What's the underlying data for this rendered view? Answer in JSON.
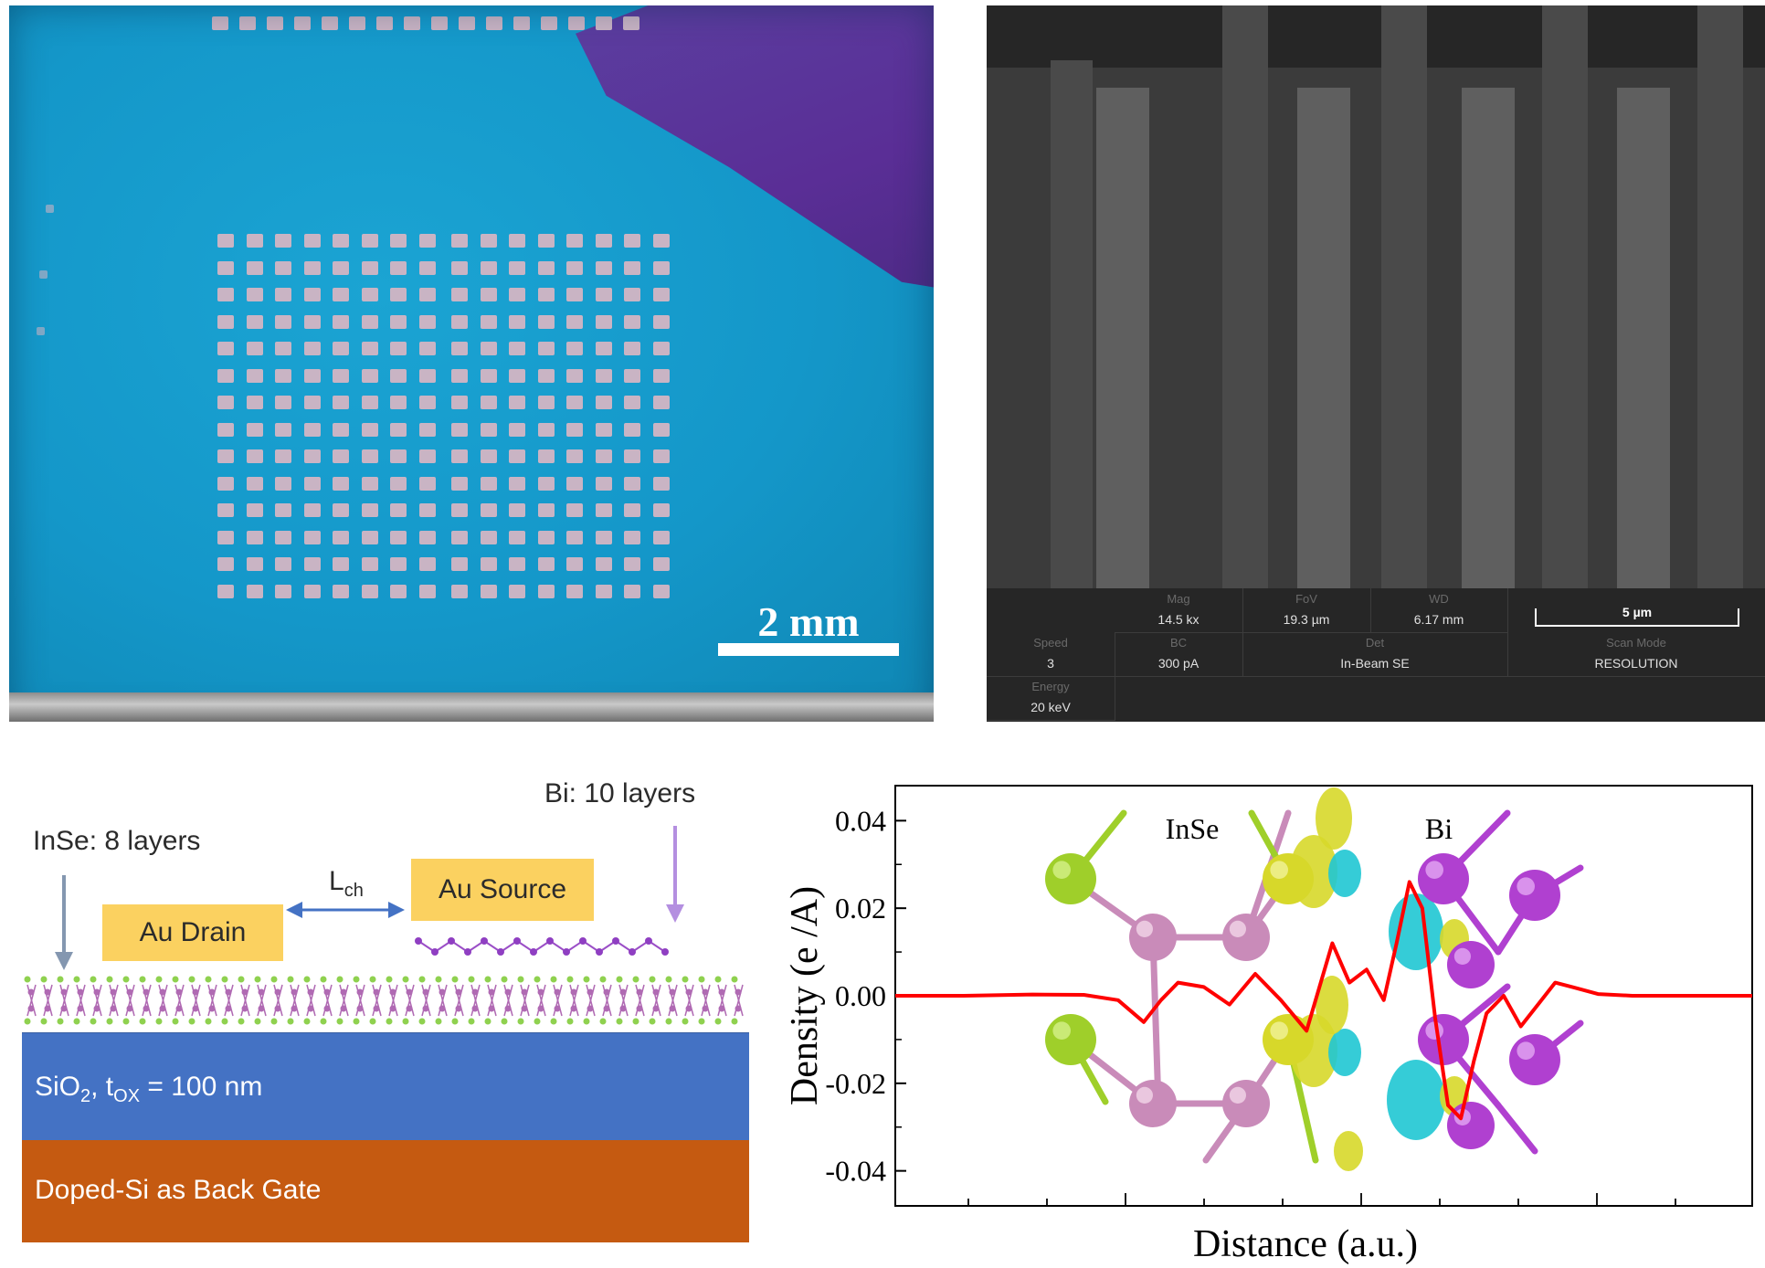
{
  "panel_a": {
    "scale_bar_label": "2 mm"
  },
  "panel_b": {
    "info_bar": {
      "row1": [
        {
          "key": "Mag",
          "value": "14.5 kx"
        },
        {
          "key": "FoV",
          "value": "19.3 µm"
        },
        {
          "key": "WD",
          "value": "6.17 mm"
        }
      ],
      "scale_bar_label": "5 µm",
      "row2": [
        {
          "key": "Speed",
          "value": "3"
        },
        {
          "key": "BC",
          "value": "300 pA"
        },
        {
          "key": "Det",
          "value": "In-Beam SE"
        },
        {
          "key": "Scan Mode",
          "value": "RESOLUTION"
        }
      ],
      "row3": [
        {
          "key": "Energy",
          "value": "20 keV"
        }
      ]
    }
  },
  "panel_c": {
    "inse_label": "InSe: 8 layers",
    "bi_label": "Bi: 10 layers",
    "channel_label_main": "L",
    "channel_label_sub": "ch",
    "drain_label": "Au Drain",
    "source_label": "Au Source",
    "oxide_label_pre": "SiO",
    "oxide_label_sub": "2",
    "oxide_label_mid": ", t",
    "oxide_label_sub2": "OX",
    "oxide_label_post": " = 100 nm",
    "gate_label": "Doped-Si as Back Gate",
    "colors": {
      "gold": "#fbd160",
      "oxide": "#4472c4",
      "gate": "#c55a11",
      "arrow_inse": "#8497b0",
      "arrow_bi": "#b48fe0",
      "lch_arrow": "#4472c4"
    }
  },
  "chart_data": {
    "type": "line",
    "xlabel": "Distance (a.u.)",
    "ylabel": "Density (e /A)",
    "ylim": [
      -0.048,
      0.048
    ],
    "yticks": [
      "0.04",
      "0.02",
      "0.00",
      "-0.02",
      "-0.04"
    ],
    "ytick_values": [
      0.04,
      0.02,
      0.0,
      -0.02,
      -0.04
    ],
    "xlim": [
      0,
      1
    ],
    "annotations": [
      "InSe",
      "Bi"
    ],
    "series": [
      {
        "color": "#ff0000",
        "x": [
          0.0,
          0.08,
          0.16,
          0.22,
          0.26,
          0.29,
          0.31,
          0.33,
          0.36,
          0.39,
          0.42,
          0.45,
          0.48,
          0.51,
          0.53,
          0.55,
          0.57,
          0.585,
          0.6,
          0.615,
          0.63,
          0.645,
          0.66,
          0.675,
          0.69,
          0.71,
          0.73,
          0.75,
          0.77,
          0.79,
          0.82,
          0.86,
          0.9,
          0.95,
          1.0
        ],
        "y": [
          0.0,
          0.0,
          0.0003,
          0.0002,
          -0.001,
          -0.006,
          -0.001,
          0.003,
          0.002,
          -0.002,
          0.005,
          -0.001,
          -0.008,
          0.012,
          0.003,
          0.006,
          -0.001,
          0.012,
          0.026,
          0.02,
          -0.005,
          -0.025,
          -0.028,
          -0.015,
          -0.004,
          0.0,
          -0.007,
          -0.002,
          0.003,
          0.002,
          0.0004,
          0.0,
          0.0,
          0.0,
          0.0
        ]
      }
    ]
  }
}
